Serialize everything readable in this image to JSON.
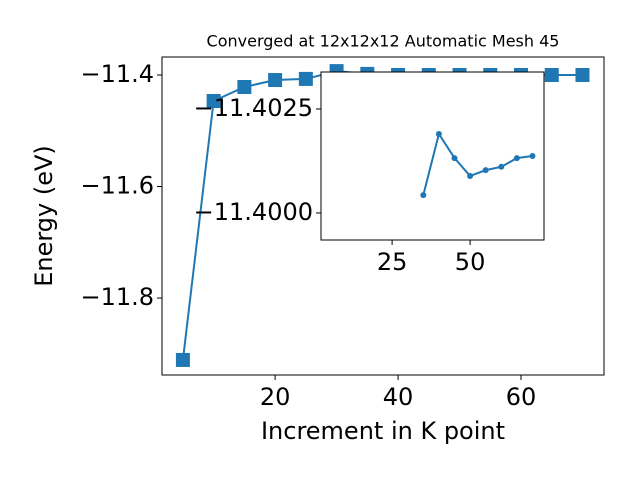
{
  "chart_data": [
    {
      "type": "line",
      "title": "Converged at 12x12x12 Automatic Mesh 45",
      "x_label": "Increment in K point",
      "y_label": "Energy (eV)",
      "x": [
        5,
        10,
        15,
        20,
        25,
        30,
        35,
        40,
        45,
        50,
        55,
        60,
        65,
        70
      ],
      "series": [
        {
          "color": "#1f77b4",
          "marker": "square",
          "values": [
            -11.911,
            -11.4466,
            -11.4215,
            -11.409,
            -11.407,
            -11.393,
            -11.398,
            -11.4,
            -11.4,
            -11.4,
            -11.4,
            -11.4,
            -11.4,
            -11.4
          ]
        }
      ],
      "xlim": [
        1.6,
        73.5
      ],
      "ylim": [
        -11.938,
        -11.3677
      ],
      "xticks": [
        20,
        40,
        60
      ],
      "yticks": [
        {
          "value": -11.8,
          "label": "−11.8"
        },
        {
          "value": -11.6,
          "label": "−11.6"
        },
        {
          "value": -11.4,
          "label": "−11.4"
        }
      ]
    },
    {
      "type": "line",
      "x": [
        35,
        40,
        45,
        50,
        55,
        60,
        65,
        70
      ],
      "series": [
        {
          "color": "#1f77b4",
          "marker": "circle",
          "values": [
            -11.40043,
            -11.4019,
            -11.40132,
            -11.40089,
            -11.40103,
            -11.40111,
            -11.40132,
            -11.40137
          ]
        }
      ],
      "xlim": [
        2.2,
        73.7
      ],
      "ylim": [
        -11.39935,
        -11.40339
      ],
      "xticks": [
        25,
        50
      ],
      "yticks": [
        {
          "value": -11.4,
          "label": "−11.4000"
        },
        {
          "value": -11.4025,
          "label": "−11.4025"
        }
      ]
    }
  ]
}
